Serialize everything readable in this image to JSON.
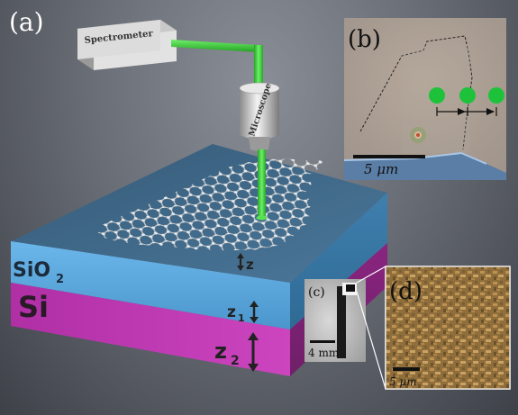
{
  "panels": {
    "a": {
      "label": "(a)",
      "spectrometer_label": "Spectrometer",
      "microscope_label": "Microscope",
      "layer_sio2": "SiO",
      "layer_sio2_sub": "2",
      "layer_si": "Si",
      "dim_z": "z",
      "dim_z1": "z",
      "dim_z1_sub": "1",
      "dim_z2": "z",
      "dim_z2_sub": "2"
    },
    "b": {
      "label": "(b)",
      "scale_text": "5 μm"
    },
    "c": {
      "label": "(c)",
      "scale_text": "4 mm"
    },
    "d": {
      "label": "(d)",
      "scale_text": "5 μm"
    }
  },
  "colors": {
    "beam": "#3fd53a",
    "sio2_top": "#3f6a8a",
    "sio2_front": "#5aa6dc",
    "si_front": "#c23bb5",
    "dot": "#1ec23a"
  }
}
